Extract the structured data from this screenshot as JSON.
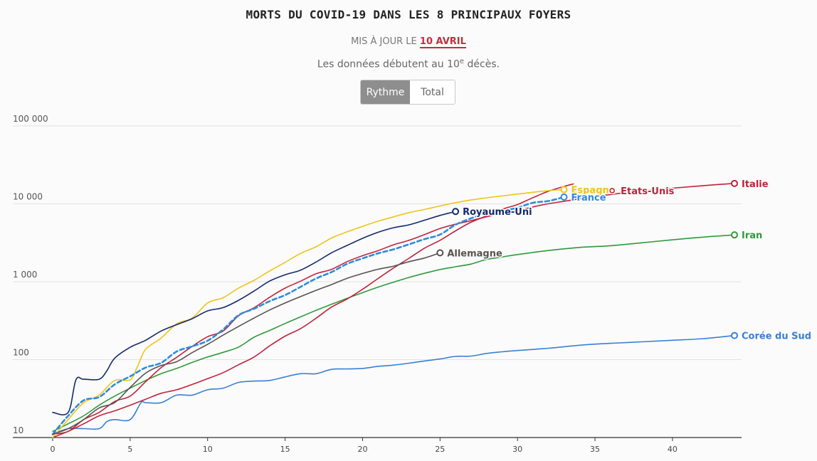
{
  "header": {
    "title": "MORTS DU COVID-19 DANS LES 8 PRINCIPAUX FOYERS",
    "updated_prefix": "MIS À JOUR LE",
    "updated_date": "10 AVRIL",
    "note_before": "Les données débutent au 10",
    "note_sup": "e",
    "note_after": " décès."
  },
  "toggle": {
    "active_label": "Rythme",
    "inactive_label": "Total"
  },
  "chart_data": {
    "type": "line",
    "title": "MORTS DU COVID-19 DANS LES 8 PRINCIPAUX FOYERS",
    "xlabel": "",
    "ylabel": "",
    "yscale": "log",
    "xlim": [
      0,
      44
    ],
    "ylim": [
      10,
      100000
    ],
    "x_ticks": [
      0,
      5,
      10,
      15,
      20,
      25,
      30,
      35,
      40
    ],
    "y_ticks": [
      {
        "value": 10,
        "label": "10"
      },
      {
        "value": 100,
        "label": "100"
      },
      {
        "value": 1000,
        "label": "1 000"
      },
      {
        "value": 10000,
        "label": "10 000"
      },
      {
        "value": 100000,
        "label": "100 000"
      }
    ],
    "grid": true,
    "series": [
      {
        "name": "Corée du Sud",
        "color": "#3a7fd5",
        "dashed": false,
        "points": [
          [
            0,
            11
          ],
          [
            1,
            13
          ],
          [
            2,
            13
          ],
          [
            3,
            13
          ],
          [
            3.5,
            16
          ],
          [
            4,
            17
          ],
          [
            5,
            17
          ],
          [
            5.7,
            28
          ],
          [
            6,
            28
          ],
          [
            7,
            28
          ],
          [
            8,
            35
          ],
          [
            9,
            35
          ],
          [
            10,
            41
          ],
          [
            11,
            43
          ],
          [
            12,
            51
          ],
          [
            13,
            53
          ],
          [
            14,
            54
          ],
          [
            15,
            60
          ],
          [
            16,
            66
          ],
          [
            17,
            66
          ],
          [
            18,
            75
          ],
          [
            19,
            76
          ],
          [
            20,
            77
          ],
          [
            21,
            82
          ],
          [
            22,
            85
          ],
          [
            23,
            90
          ],
          [
            24,
            96
          ],
          [
            25,
            102
          ],
          [
            26,
            110
          ],
          [
            27,
            111
          ],
          [
            28,
            120
          ],
          [
            29,
            126
          ],
          [
            30,
            131
          ],
          [
            32,
            140
          ],
          [
            34,
            153
          ],
          [
            36,
            162
          ],
          [
            38,
            169
          ],
          [
            40,
            177
          ],
          [
            42,
            186
          ],
          [
            44,
            204
          ]
        ]
      },
      {
        "name": "Iran",
        "color": "#2e9a3b",
        "dashed": false,
        "points": [
          [
            0,
            12
          ],
          [
            1,
            15
          ],
          [
            2,
            19
          ],
          [
            3,
            26
          ],
          [
            4,
            34
          ],
          [
            5,
            43
          ],
          [
            6,
            54
          ],
          [
            7,
            66
          ],
          [
            8,
            77
          ],
          [
            9,
            92
          ],
          [
            10,
            108
          ],
          [
            11,
            124
          ],
          [
            12,
            145
          ],
          [
            13,
            194
          ],
          [
            14,
            237
          ],
          [
            15,
            291
          ],
          [
            16,
            354
          ],
          [
            17,
            429
          ],
          [
            18,
            514
          ],
          [
            19,
            611
          ],
          [
            20,
            724
          ],
          [
            21,
            853
          ],
          [
            22,
            988
          ],
          [
            23,
            1135
          ],
          [
            24,
            1284
          ],
          [
            25,
            1433
          ],
          [
            26,
            1556
          ],
          [
            27,
            1685
          ],
          [
            28,
            1934
          ],
          [
            29,
            2077
          ],
          [
            30,
            2234
          ],
          [
            32,
            2517
          ],
          [
            34,
            2757
          ],
          [
            36,
            2898
          ],
          [
            38,
            3160
          ],
          [
            40,
            3452
          ],
          [
            42,
            3739
          ],
          [
            44,
            3993
          ]
        ]
      },
      {
        "name": "Italie",
        "color": "#c0223c",
        "dashed": false,
        "points": [
          [
            0,
            11
          ],
          [
            1,
            12
          ],
          [
            2,
            17
          ],
          [
            3,
            21
          ],
          [
            4,
            29
          ],
          [
            5,
            34
          ],
          [
            6,
            52
          ],
          [
            7,
            79
          ],
          [
            8,
            107
          ],
          [
            9,
            148
          ],
          [
            10,
            197
          ],
          [
            11,
            233
          ],
          [
            12,
            366
          ],
          [
            13,
            463
          ],
          [
            14,
            631
          ],
          [
            15,
            827
          ],
          [
            16,
            1016
          ],
          [
            17,
            1266
          ],
          [
            18,
            1441
          ],
          [
            19,
            1809
          ],
          [
            20,
            2158
          ],
          [
            21,
            2503
          ],
          [
            22,
            2978
          ],
          [
            23,
            3405
          ],
          [
            24,
            4032
          ],
          [
            25,
            4825
          ],
          [
            26,
            5476
          ],
          [
            27,
            6077
          ],
          [
            28,
            6820
          ],
          [
            29,
            7503
          ],
          [
            30,
            8165
          ],
          [
            31,
            9134
          ],
          [
            32,
            10023
          ],
          [
            33,
            10779
          ],
          [
            34,
            11591
          ],
          [
            35,
            12428
          ],
          [
            36,
            13155
          ],
          [
            38,
            14681
          ],
          [
            40,
            15887
          ],
          [
            42,
            17127
          ],
          [
            44,
            18279
          ]
        ]
      },
      {
        "name": "Etats-Unis",
        "color": "#c0223c",
        "dashed": false,
        "points": [
          [
            0,
            10
          ],
          [
            1,
            12
          ],
          [
            2,
            15
          ],
          [
            3,
            19
          ],
          [
            4,
            22
          ],
          [
            5,
            26
          ],
          [
            6,
            31
          ],
          [
            7,
            37
          ],
          [
            8,
            41
          ],
          [
            9,
            48
          ],
          [
            10,
            57
          ],
          [
            11,
            68
          ],
          [
            12,
            86
          ],
          [
            13,
            108
          ],
          [
            14,
            150
          ],
          [
            15,
            200
          ],
          [
            16,
            250
          ],
          [
            17,
            340
          ],
          [
            18,
            473
          ],
          [
            19,
            600
          ],
          [
            20,
            800
          ],
          [
            21,
            1100
          ],
          [
            22,
            1500
          ],
          [
            23,
            2000
          ],
          [
            24,
            2700
          ],
          [
            25,
            3400
          ],
          [
            26,
            4500
          ],
          [
            27,
            5800
          ],
          [
            28,
            7000
          ],
          [
            29,
            8500
          ],
          [
            30,
            9800
          ],
          [
            31,
            12000
          ],
          [
            32,
            14500
          ],
          [
            33,
            16700
          ],
          [
            33.6,
            18000
          ]
        ]
      },
      {
        "name": "Espagne",
        "color": "#f0c419",
        "dashed": false,
        "points": [
          [
            0,
            10
          ],
          [
            1,
            17
          ],
          [
            2,
            28
          ],
          [
            3,
            35
          ],
          [
            4,
            54
          ],
          [
            5,
            55
          ],
          [
            5.5,
            84
          ],
          [
            6,
            136
          ],
          [
            7,
            189
          ],
          [
            8,
            288
          ],
          [
            9,
            342
          ],
          [
            10,
            533
          ],
          [
            11,
            623
          ],
          [
            12,
            830
          ],
          [
            13,
            1043
          ],
          [
            14,
            1375
          ],
          [
            15,
            1772
          ],
          [
            16,
            2311
          ],
          [
            17,
            2808
          ],
          [
            18,
            3647
          ],
          [
            19,
            4365
          ],
          [
            20,
            5138
          ],
          [
            21,
            5982
          ],
          [
            22,
            6803
          ],
          [
            23,
            7716
          ],
          [
            24,
            8464
          ],
          [
            25,
            9387
          ],
          [
            26,
            10348
          ],
          [
            27,
            11198
          ],
          [
            28,
            11947
          ],
          [
            29,
            12641
          ],
          [
            30,
            13341
          ],
          [
            31,
            14045
          ],
          [
            32,
            14792
          ],
          [
            33,
            15238
          ]
        ]
      },
      {
        "name": "France",
        "color": "#2d8be0",
        "dashed": true,
        "points": [
          [
            0,
            11
          ],
          [
            1,
            19
          ],
          [
            2,
            30
          ],
          [
            3,
            33
          ],
          [
            4,
            48
          ],
          [
            5,
            61
          ],
          [
            6,
            79
          ],
          [
            7,
            91
          ],
          [
            8,
            127
          ],
          [
            9,
            148
          ],
          [
            10,
            175
          ],
          [
            11,
            244
          ],
          [
            12,
            372
          ],
          [
            13,
            450
          ],
          [
            14,
            562
          ],
          [
            15,
            674
          ],
          [
            16,
            860
          ],
          [
            17,
            1100
          ],
          [
            18,
            1331
          ],
          [
            19,
            1696
          ],
          [
            20,
            1995
          ],
          [
            21,
            2314
          ],
          [
            22,
            2606
          ],
          [
            23,
            3024
          ],
          [
            24,
            3523
          ],
          [
            25,
            4032
          ],
          [
            26,
            5387
          ],
          [
            27,
            6507
          ],
          [
            28,
            7560
          ],
          [
            29,
            8078
          ],
          [
            30,
            8911
          ],
          [
            31,
            10328
          ],
          [
            32,
            10869
          ],
          [
            33,
            12210
          ]
        ]
      },
      {
        "name": "Royaume-Uni",
        "color": "#14286e",
        "dashed": false,
        "points": [
          [
            0,
            21
          ],
          [
            1,
            21
          ],
          [
            1.5,
            55
          ],
          [
            2,
            56
          ],
          [
            3,
            56
          ],
          [
            3.5,
            72
          ],
          [
            4,
            104
          ],
          [
            5,
            144
          ],
          [
            6,
            177
          ],
          [
            7,
            233
          ],
          [
            8,
            281
          ],
          [
            9,
            335
          ],
          [
            10,
            422
          ],
          [
            11,
            465
          ],
          [
            12,
            578
          ],
          [
            13,
            759
          ],
          [
            14,
            1019
          ],
          [
            15,
            1228
          ],
          [
            16,
            1408
          ],
          [
            17,
            1789
          ],
          [
            18,
            2352
          ],
          [
            19,
            2921
          ],
          [
            20,
            3605
          ],
          [
            21,
            4313
          ],
          [
            22,
            4934
          ],
          [
            23,
            5373
          ],
          [
            24,
            6159
          ],
          [
            25,
            7097
          ],
          [
            26,
            7978
          ]
        ]
      },
      {
        "name": "Allemagne",
        "color": "#5a5252",
        "dashed": false,
        "points": [
          [
            0,
            11
          ],
          [
            1,
            13
          ],
          [
            2,
            17
          ],
          [
            3,
            24
          ],
          [
            4,
            28
          ],
          [
            5,
            44
          ],
          [
            6,
            67
          ],
          [
            7,
            84
          ],
          [
            8,
            94
          ],
          [
            9,
            123
          ],
          [
            10,
            157
          ],
          [
            11,
            206
          ],
          [
            12,
            267
          ],
          [
            13,
            342
          ],
          [
            14,
            433
          ],
          [
            15,
            533
          ],
          [
            16,
            645
          ],
          [
            17,
            775
          ],
          [
            18,
            920
          ],
          [
            19,
            1107
          ],
          [
            20,
            1275
          ],
          [
            21,
            1444
          ],
          [
            22,
            1584
          ],
          [
            23,
            1810
          ],
          [
            24,
            2016
          ],
          [
            25,
            2349
          ]
        ]
      }
    ],
    "end_labels": [
      {
        "series": "Italie",
        "label": "Italie"
      },
      {
        "series": "Espagne",
        "label": "Espagne"
      },
      {
        "series": "Etats-Unis",
        "label": "Etats-Unis"
      },
      {
        "series": "France",
        "label": "France"
      },
      {
        "series": "Royaume-Uni",
        "label": "Royaume-Uni"
      },
      {
        "series": "Iran",
        "label": "Iran"
      },
      {
        "series": "Allemagne",
        "label": "Allemagne"
      },
      {
        "series": "Corée du Sud",
        "label": "Corée du Sud"
      }
    ]
  }
}
